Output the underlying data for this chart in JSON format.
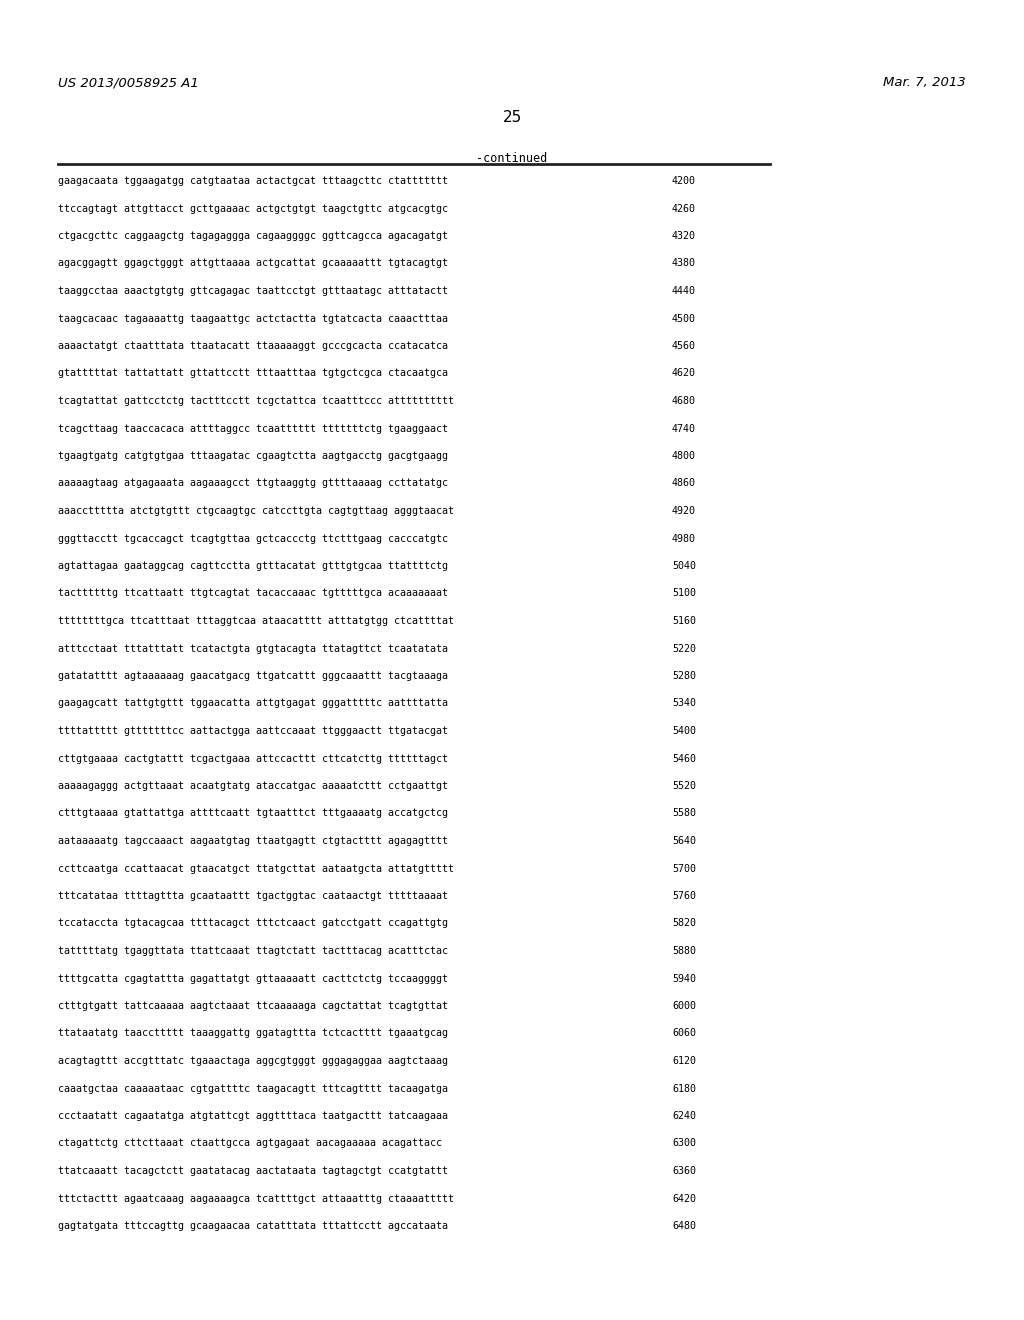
{
  "header_left": "US 2013/0058925 A1",
  "header_right": "Mar. 7, 2013",
  "page_number": "25",
  "continued_label": "-continued",
  "background_color": "#ffffff",
  "text_color": "#000000",
  "sequence_lines": [
    [
      "gaagacaata tggaagatgg catgtaataa actactgcat tttaagcttc ctattttttt",
      "4200"
    ],
    [
      "ttccagtagt attgttacct gcttgaaaac actgctgtgt taagctgttc atgcacgtgc",
      "4260"
    ],
    [
      "ctgacgcttc caggaagctg tagagaggga cagaaggggc ggttcagcca agacagatgt",
      "4320"
    ],
    [
      "agacggagtt ggagctgggt attgttaaaa actgcattat gcaaaaattt tgtacagtgt",
      "4380"
    ],
    [
      "taaggcctaa aaactgtgtg gttcagagac taattcctgt gtttaatagc atttatactt",
      "4440"
    ],
    [
      "taagcacaac tagaaaattg taagaattgc actctactta tgtatcacta caaactttaa",
      "4500"
    ],
    [
      "aaaactatgt ctaatttata ttaatacatt ttaaaaaggt gcccgcacta ccatacatca",
      "4560"
    ],
    [
      "gtatttttat tattattatt gttattcctt tttaatttaa tgtgctcgca ctacaatgca",
      "4620"
    ],
    [
      "tcagtattat gattcctctg tactttcctt tcgctattca tcaatttccc atttttttttt",
      "4680"
    ],
    [
      "tcagcttaag taaccacaca attttaggcc tcaatttttt tttttttctg tgaaggaact",
      "4740"
    ],
    [
      "tgaagtgatg catgtgtgaa tttaagatac cgaagtctta aagtgacctg gacgtgaagg",
      "4800"
    ],
    [
      "aaaaagtaag atgagaaata aagaaagcct ttgtaaggtg gttttaaaag ccttatatgc",
      "4860"
    ],
    [
      "aaaccttttta atctgtgttt ctgcaagtgc catccttgta cagtgttaag agggtaacat",
      "4920"
    ],
    [
      "gggttacctt tgcaccagct tcagtgttaa gctcaccctg ttctttgaag cacccatgtc",
      "4980"
    ],
    [
      "agtattagaa gaataggcag cagttcctta gtttacatat gtttgtgcaa ttattttctg",
      "5040"
    ],
    [
      "tacttttttg ttcattaatt ttgtcagtat tacaccaaac tgtttttgca acaaaaaaat",
      "5100"
    ],
    [
      "ttttttttgca ttcatttaat tttaggtcaa ataacatttt atttatgtgg ctcattttat",
      "5160"
    ],
    [
      "atttcctaat tttatttatt tcatactgta gtgtacagta ttatagttct tcaatatata",
      "5220"
    ],
    [
      "gatatatttt agtaaaaaag gaacatgacg ttgatcattt gggcaaattt tacgtaaaga",
      "5280"
    ],
    [
      "gaagagcatt tattgtgttt tggaacatta attgtgagat gggatttttc aattttatta",
      "5340"
    ],
    [
      "ttttattttt gtttttttcc aattactgga aattccaaat ttgggaactt ttgatacgat",
      "5400"
    ],
    [
      "cttgtgaaaa cactgtattt tcgactgaaa attccacttt cttcatcttg ttttttagct",
      "5460"
    ],
    [
      "aaaaagaggg actgttaaat acaatgtatg ataccatgac aaaaatcttt cctgaattgt",
      "5520"
    ],
    [
      "ctttgtaaaa gtattattga attttcaatt tgtaatttct tttgaaaatg accatgctcg",
      "5580"
    ],
    [
      "aataaaaatg tagccaaact aagaatgtag ttaatgagtt ctgtactttt agagagtttt",
      "5640"
    ],
    [
      "ccttcaatga ccattaacat gtaacatgct ttatgcttat aataatgcta attatgttttt",
      "5700"
    ],
    [
      "tttcatataa ttttagttta gcaataattt tgactggtac caataactgt tttttaaaat",
      "5760"
    ],
    [
      "tccataccta tgtacagcaa ttttacagct tttctcaact gatcctgatt ccagattgtg",
      "5820"
    ],
    [
      "tatttttatg tgaggttata ttattcaaat ttagtctatt tactttacag acatttctac",
      "5880"
    ],
    [
      "ttttgcatta cgagtattta gagattatgt gttaaaaatt cacttctctg tccaaggggt",
      "5940"
    ],
    [
      "ctttgtgatt tattcaaaaa aagtctaaat ttcaaaaaga cagctattat tcagtgttat",
      "6000"
    ],
    [
      "ttataatatg taaccttttt taaaggattg ggatagttta tctcactttt tgaaatgcag",
      "6060"
    ],
    [
      "acagtagttt accgtttatc tgaaactaga aggcgtgggt gggagaggaa aagtctaaag",
      "6120"
    ],
    [
      "caaatgctaa caaaaataac cgtgattttc taagacagtt tttcagtttt tacaagatga",
      "6180"
    ],
    [
      "ccctaatatt cagaatatga atgtattcgt aggttttaca taatgacttt tatcaagaaa",
      "6240"
    ],
    [
      "ctagattctg cttcttaaat ctaattgcca agtgagaat aacagaaaaa acagattacc",
      "6300"
    ],
    [
      "ttatcaaatt tacagctctt gaatatacag aactataata tagtagctgt ccatgtattt",
      "6360"
    ],
    [
      "tttctacttt agaatcaaag aagaaaagca tcattttgct attaaatttg ctaaaattttt",
      "6420"
    ],
    [
      "gagtatgata tttccagttg gcaagaacaa catatttata tttattcctt agccataata",
      "6480"
    ]
  ]
}
